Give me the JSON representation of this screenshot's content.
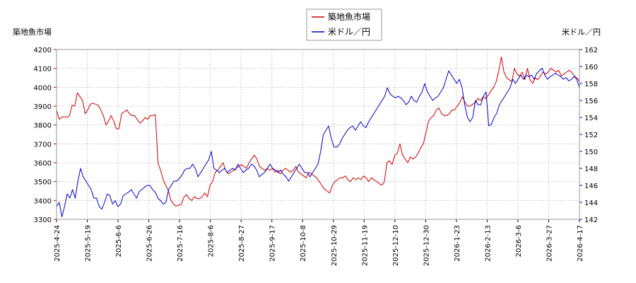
{
  "chart_data": {
    "type": "line",
    "left_axis_label": "築地魚市場",
    "right_axis_label": "米ドル／円",
    "legend": [
      {
        "label": "築地魚市場",
        "color": "#cc0000"
      },
      {
        "label": "米ドル／円",
        "color": "#0000cc"
      }
    ],
    "legend_position": "top-center",
    "grid": true,
    "x_ticks": [
      "2025-4-24",
      "2025-5-19",
      "2025-6-6",
      "2025-6-26",
      "2025-7-16",
      "2025-8-6",
      "2025-8-27",
      "2025-9-17",
      "2025-10-8",
      "2025-10-29",
      "2025-11-19",
      "2025-12-10",
      "2025-12-30",
      "2026-1-23",
      "2026-2-13",
      "2026-3-6",
      "2026-3-27",
      "2026-4-17"
    ],
    "y_left": {
      "min": 3300,
      "max": 4200,
      "ticks": [
        3300,
        3400,
        3500,
        3600,
        3700,
        3800,
        3900,
        4000,
        4100,
        4200
      ],
      "color": "#cc0000"
    },
    "y_right": {
      "min": 142,
      "max": 162,
      "ticks": [
        142,
        144,
        146,
        148,
        150,
        152,
        154,
        156,
        158,
        160,
        162
      ],
      "color": "#0000cc"
    },
    "series": [
      {
        "name": "築地魚市場",
        "axis": "left",
        "color": "#cc0000",
        "values": [
          3880,
          3830,
          3840,
          3845,
          3840,
          3850,
          3905,
          3900,
          3970,
          3950,
          3930,
          3860,
          3880,
          3910,
          3915,
          3910,
          3905,
          3880,
          3850,
          3800,
          3820,
          3850,
          3820,
          3780,
          3780,
          3860,
          3870,
          3880,
          3860,
          3850,
          3850,
          3830,
          3810,
          3820,
          3840,
          3830,
          3850,
          3850,
          3855,
          3600,
          3560,
          3510,
          3480,
          3450,
          3400,
          3380,
          3370,
          3375,
          3380,
          3420,
          3430,
          3410,
          3400,
          3420,
          3410,
          3410,
          3420,
          3440,
          3420,
          3480,
          3500,
          3550,
          3560,
          3580,
          3600,
          3560,
          3540,
          3550,
          3560,
          3570,
          3580,
          3590,
          3580,
          3570,
          3600,
          3620,
          3640,
          3620,
          3580,
          3570,
          3560,
          3570,
          3560,
          3570,
          3550,
          3560,
          3540,
          3560,
          3570,
          3560,
          3550,
          3560,
          3580,
          3550,
          3540,
          3530,
          3520,
          3550,
          3540,
          3530,
          3520,
          3500,
          3480,
          3460,
          3450,
          3440,
          3480,
          3500,
          3510,
          3520,
          3520,
          3530,
          3510,
          3500,
          3520,
          3510,
          3520,
          3510,
          3530,
          3520,
          3500,
          3520,
          3510,
          3500,
          3490,
          3480,
          3500,
          3600,
          3610,
          3590,
          3640,
          3650,
          3700,
          3640,
          3620,
          3600,
          3630,
          3620,
          3630,
          3650,
          3680,
          3700,
          3760,
          3820,
          3840,
          3850,
          3880,
          3890,
          3860,
          3850,
          3850,
          3860,
          3880,
          3880,
          3900,
          3920,
          3950,
          3920,
          3900,
          3900,
          3910,
          3920,
          3940,
          3930,
          3950,
          3940,
          3960,
          3980,
          4000,
          4030,
          4090,
          4160,
          4080,
          4050,
          4040,
          4030,
          4100,
          4070,
          4060,
          4080,
          4040,
          4100,
          4040,
          4020,
          4050,
          4040,
          4060,
          4080,
          4070,
          4080,
          4100,
          4090,
          4080,
          4090,
          4060,
          4070,
          4080,
          4090,
          4080,
          4060,
          4050,
          4030
        ]
      },
      {
        "name": "米ドル／円",
        "axis": "right",
        "color": "#0000cc",
        "values": [
          143.5,
          144.0,
          142.3,
          143.5,
          145.0,
          144.5,
          145.5,
          144.5,
          146.5,
          148.0,
          147.0,
          146.5,
          146.0,
          145.5,
          144.5,
          144.5,
          143.5,
          143.2,
          144.0,
          145.0,
          144.8,
          143.8,
          144.2,
          143.5,
          143.8,
          144.8,
          145.0,
          145.2,
          145.5,
          145.0,
          144.5,
          145.3,
          145.5,
          145.8,
          146.0,
          146.0,
          145.5,
          145.2,
          144.5,
          144.2,
          143.8,
          144.0,
          145.5,
          146.0,
          146.5,
          146.5,
          146.8,
          147.2,
          147.8,
          148.0,
          148.0,
          148.5,
          148.0,
          147.0,
          147.5,
          148.0,
          148.5,
          149.0,
          150.0,
          148.0,
          147.8,
          147.5,
          147.8,
          148.0,
          147.5,
          147.8,
          148.0,
          147.8,
          148.5,
          148.0,
          147.5,
          147.8,
          148.0,
          148.5,
          148.3,
          147.8,
          147.0,
          147.3,
          147.5,
          148.0,
          148.5,
          148.0,
          147.8,
          147.5,
          147.8,
          147.3,
          147.0,
          146.5,
          147.0,
          147.5,
          148.0,
          148.5,
          148.0,
          147.5,
          147.5,
          147.0,
          147.5,
          148.0,
          148.5,
          150.0,
          152.0,
          152.5,
          153.0,
          151.5,
          150.5,
          150.5,
          150.8,
          151.5,
          152.0,
          152.5,
          152.8,
          153.0,
          152.5,
          153.0,
          153.5,
          153.0,
          152.8,
          153.5,
          154.0,
          154.5,
          155.0,
          155.5,
          156.0,
          156.5,
          157.5,
          156.8,
          156.5,
          156.3,
          156.5,
          156.3,
          156.0,
          155.5,
          155.8,
          156.5,
          156.0,
          155.8,
          156.5,
          157.0,
          158.0,
          157.0,
          156.5,
          156.0,
          156.3,
          156.5,
          157.0,
          157.5,
          158.5,
          159.5,
          159.0,
          158.5,
          158.0,
          158.5,
          157.5,
          155.5,
          154.0,
          153.5,
          154.0,
          156.0,
          155.5,
          155.5,
          156.5,
          157.0,
          153.0,
          153.2,
          154.0,
          154.5,
          155.5,
          156.0,
          156.5,
          157.0,
          157.5,
          158.5,
          158.0,
          158.5,
          159.0,
          158.5,
          159.0,
          158.8,
          159.0,
          158.5,
          159.2,
          159.5,
          159.8,
          159.0,
          158.5,
          158.8,
          159.0,
          159.2,
          159.0,
          158.8,
          158.5,
          158.7,
          158.3,
          158.5,
          158.8,
          158.5,
          157.5
        ]
      }
    ]
  }
}
